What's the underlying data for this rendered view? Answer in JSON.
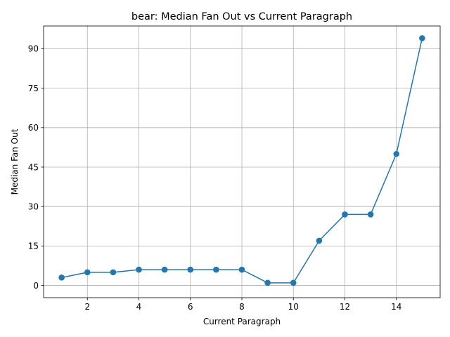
{
  "chart_data": {
    "type": "line",
    "title": "bear: Median Fan Out vs Current Paragraph",
    "xlabel": "Current Paragraph",
    "ylabel": "Median Fan Out",
    "x": [
      1,
      2,
      3,
      4,
      5,
      6,
      7,
      8,
      9,
      10,
      11,
      12,
      13,
      14,
      15
    ],
    "series": [
      {
        "values": [
          3,
          5,
          5,
          6,
          6,
          6,
          6,
          6,
          1,
          1,
          17,
          27,
          27,
          50,
          94
        ]
      }
    ],
    "xticks": [
      2,
      4,
      6,
      8,
      10,
      12,
      14
    ],
    "yticks": [
      0,
      15,
      30,
      45,
      60,
      75,
      90
    ],
    "xlim": [
      0.3,
      15.7
    ],
    "ylim": [
      -4.65,
      98.65
    ],
    "grid": true,
    "marker": "circle",
    "colors": {
      "series": "#1f77b4",
      "grid": "#b0b0b0",
      "axes": "#000000"
    }
  }
}
